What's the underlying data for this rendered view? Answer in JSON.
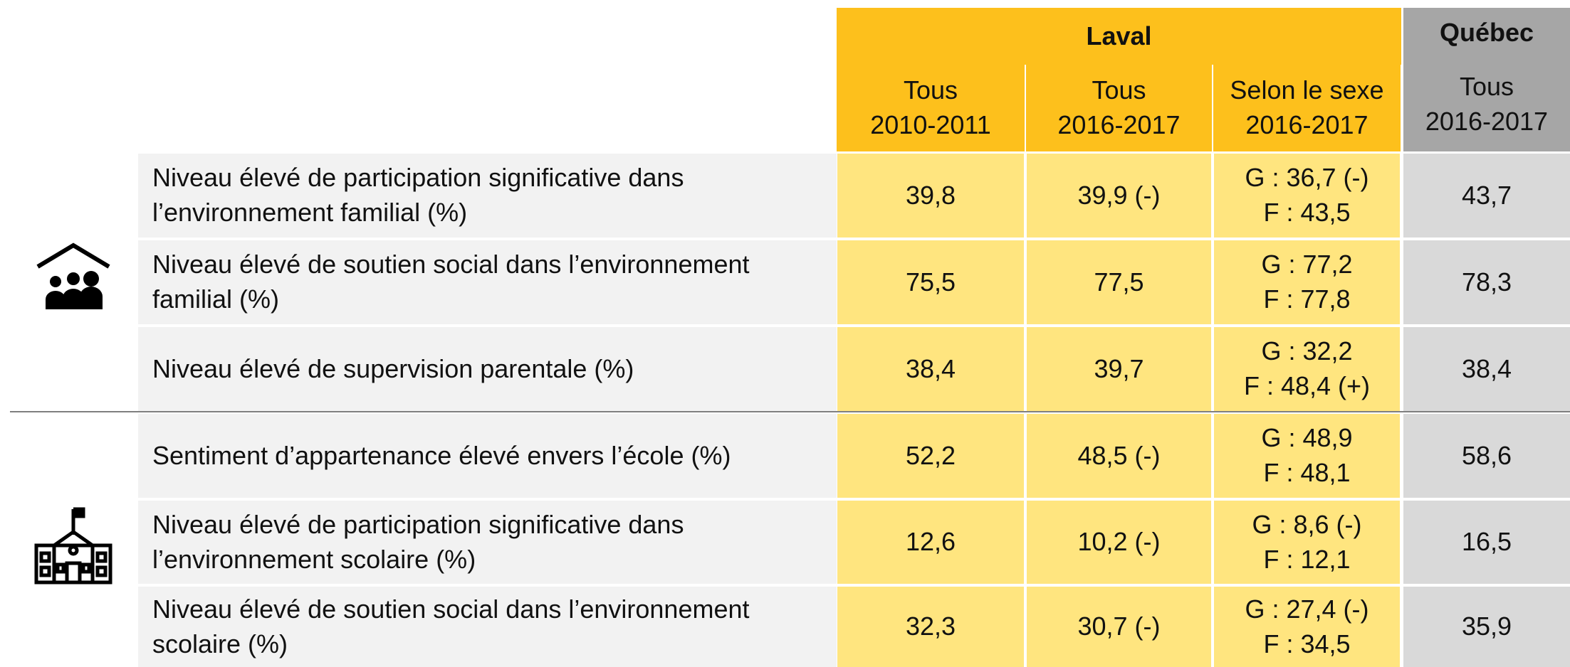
{
  "table": {
    "groups": [
      "Laval",
      "Québec"
    ],
    "columns": [
      [
        "Tous",
        "2010-2011"
      ],
      [
        "Tous",
        "2016-2017"
      ],
      [
        "Selon le sexe",
        "2016-2017"
      ],
      [
        "Tous",
        "2016-2017"
      ]
    ],
    "rows": [
      [
        "Niveau élevé de participation significative dans l’environnement familial (%)",
        "39,8",
        "39,9 (-)",
        [
          "G : 36,7 (-)",
          "F : 43,5"
        ],
        "43,7"
      ],
      [
        "Niveau élevé de soutien social dans l’environnement familial (%)",
        "75,5",
        "77,5",
        [
          "G : 77,2",
          "F : 77,8"
        ],
        "78,3"
      ],
      [
        "Niveau élevé de supervision parentale (%)",
        "38,4",
        "39,7",
        [
          "G : 32,2",
          "F : 48,4 (+)"
        ],
        "38,4"
      ],
      [
        "Sentiment d’appartenance élevé envers l’école (%)",
        "52,2",
        "48,5 (-)",
        [
          "G : 48,9",
          "F : 48,1"
        ],
        "58,6"
      ],
      [
        "Niveau élevé de participation significative dans l’environnement scolaire (%)",
        "12,6",
        "10,2 (-)",
        [
          "G : 8,6 (-)",
          "F : 12,1"
        ],
        "16,5"
      ],
      [
        "Niveau élevé de soutien social dans l’environnement scolaire (%)",
        "32,3",
        "30,7 (-)",
        [
          "G : 27,4 (-)",
          "F : 34,5"
        ],
        "35,9"
      ]
    ]
  }
}
